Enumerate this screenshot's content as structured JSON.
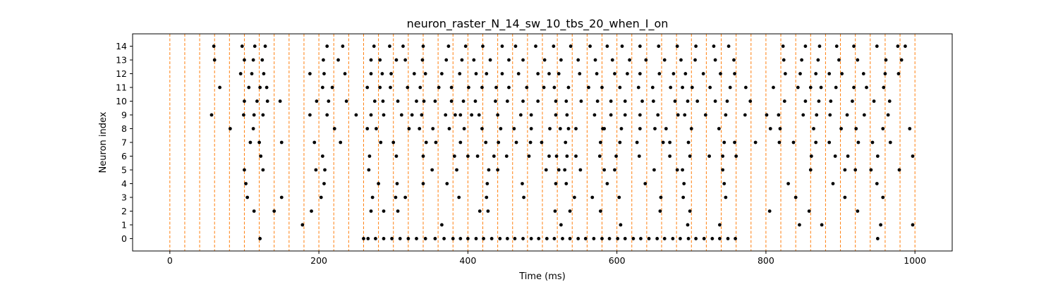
{
  "chart_data": {
    "type": "scatter",
    "title": "neuron_raster_N_14_sw_10_tbs_20_when_I_on",
    "xlabel": "Time (ms)",
    "ylabel": "Neuron index",
    "xlim": [
      -50,
      1050
    ],
    "ylim": [
      -0.9,
      14.9
    ],
    "xticks": [
      0,
      200,
      400,
      600,
      800,
      1000
    ],
    "yticks": [
      0,
      1,
      2,
      3,
      4,
      5,
      6,
      7,
      8,
      9,
      10,
      11,
      12,
      13,
      14
    ],
    "grid": false,
    "legend": "none",
    "marker_color": "#000000",
    "vline_color": "#ff7f0e",
    "vlines": [
      0,
      20,
      40,
      60,
      80,
      100,
      120,
      140,
      160,
      180,
      200,
      220,
      240,
      260,
      280,
      300,
      320,
      340,
      360,
      380,
      400,
      420,
      440,
      460,
      480,
      500,
      520,
      540,
      560,
      580,
      600,
      620,
      640,
      660,
      680,
      700,
      720,
      740,
      760,
      780,
      800,
      820,
      840,
      860,
      880,
      900,
      920,
      940,
      960,
      980,
      1000
    ],
    "spikes": [
      {
        "neuron": 0,
        "times": [
          121,
          260,
          266,
          276,
          287,
          298,
          309,
          320,
          331,
          343,
          356,
          368,
          380,
          390,
          400,
          411,
          421,
          432,
          443,
          453,
          463,
          474,
          485,
          495,
          506,
          516,
          527,
          537,
          548,
          558,
          569,
          580,
          590,
          601,
          611,
          622,
          632,
          643,
          654,
          664,
          675,
          685,
          696,
          706,
          717,
          728,
          738,
          749,
          759,
          950
        ]
      },
      {
        "neuron": 1,
        "times": [
          178,
          365,
          525,
          605,
          695,
          738,
          845,
          875,
          954,
          997
        ]
      },
      {
        "neuron": 2,
        "times": [
          113,
          140,
          190,
          270,
          287,
          306,
          416,
          427,
          517,
          537,
          578,
          658,
          698,
          805,
          858,
          923
        ]
      },
      {
        "neuron": 3,
        "times": [
          104,
          150,
          203,
          272,
          303,
          316,
          388,
          425,
          475,
          543,
          567,
          603,
          659,
          689,
          746,
          840,
          906,
          957
        ]
      },
      {
        "neuron": 4,
        "times": [
          102,
          207,
          280,
          305,
          340,
          372,
          426,
          473,
          518,
          532,
          587,
          638,
          690,
          744,
          830,
          890,
          949
        ]
      },
      {
        "neuron": 5,
        "times": [
          100,
          125,
          196,
          208,
          267,
          352,
          385,
          428,
          440,
          505,
          522,
          530,
          551,
          583,
          597,
          650,
          681,
          688,
          742,
          860,
          906,
          920,
          941,
          979
        ]
      },
      {
        "neuron": 6,
        "times": [
          122,
          205,
          268,
          304,
          340,
          382,
          400,
          413,
          435,
          452,
          482,
          509,
          519,
          533,
          545,
          577,
          599,
          630,
          671,
          698,
          724,
          742,
          760,
          861,
          893,
          910,
          950,
          997
        ]
      },
      {
        "neuron": 7,
        "times": [
          108,
          120,
          150,
          194,
          229,
          283,
          300,
          344,
          357,
          390,
          424,
          441,
          465,
          484,
          499,
          531,
          578,
          604,
          627,
          662,
          671,
          696,
          744,
          758,
          786,
          818,
          837,
          867,
          885,
          924,
          943,
          967
        ]
      },
      {
        "neuron": 8,
        "times": [
          81,
          112,
          221,
          265,
          277,
          321,
          335,
          353,
          375,
          395,
          419,
          444,
          462,
          485,
          510,
          524,
          535,
          545,
          581,
          583,
          606,
          631,
          651,
          666,
          700,
          737,
          806,
          819,
          864,
          901,
          921,
          957,
          993
        ]
      },
      {
        "neuron": 9,
        "times": [
          56,
          99,
          113,
          125,
          188,
          211,
          250,
          270,
          287,
          311,
          325,
          338,
          370,
          383,
          390,
          405,
          415,
          440,
          471,
          485,
          518,
          533,
          570,
          592,
          611,
          631,
          655,
          682,
          691,
          719,
          746,
          772,
          801,
          817,
          850,
          868,
          886,
          909,
          932,
          964
        ]
      },
      {
        "neuron": 10,
        "times": [
          100,
          117,
          131,
          148,
          197,
          213,
          237,
          275,
          286,
          306,
          331,
          341,
          356,
          378,
          394,
          410,
          437,
          453,
          474,
          494,
          518,
          532,
          552,
          574,
          592,
          611,
          634,
          649,
          678,
          695,
          708,
          732,
          748,
          779,
          825,
          853,
          871,
          887,
          916,
          945,
          966
        ]
      },
      {
        "neuron": 11,
        "times": [
          67,
          106,
          121,
          130,
          205,
          218,
          265,
          282,
          296,
          319,
          336,
          361,
          378,
          401,
          419,
          438,
          455,
          479,
          502,
          516,
          535,
          562,
          580,
          604,
          629,
          648,
          672,
          688,
          701,
          725,
          752,
          773,
          810,
          843,
          860,
          874,
          894,
          918,
          935,
          958
        ]
      },
      {
        "neuron": 12,
        "times": [
          95,
          110,
          126,
          188,
          207,
          235,
          270,
          285,
          297,
          328,
          343,
          365,
          389,
          411,
          425,
          446,
          468,
          494,
          509,
          522,
          550,
          573,
          597,
          614,
          631,
          657,
          676,
          692,
          716,
          739,
          758,
          826,
          846,
          867,
          885,
          902,
          931,
          960,
          978
        ]
      },
      {
        "neuron": 13,
        "times": [
          60,
          100,
          112,
          124,
          206,
          226,
          270,
          282,
          304,
          316,
          339,
          371,
          392,
          408,
          430,
          455,
          474,
          503,
          525,
          548,
          571,
          594,
          617,
          639,
          664,
          686,
          705,
          732,
          757,
          824,
          848,
          870,
          898,
          923,
          961,
          982
        ]
      },
      {
        "neuron": 14,
        "times": [
          59,
          97,
          114,
          128,
          211,
          232,
          274,
          295,
          313,
          340,
          374,
          397,
          420,
          446,
          464,
          491,
          515,
          538,
          564,
          587,
          607,
          631,
          656,
          681,
          706,
          730,
          750,
          823,
          853,
          872,
          895,
          918,
          949,
          977,
          987
        ]
      }
    ]
  }
}
